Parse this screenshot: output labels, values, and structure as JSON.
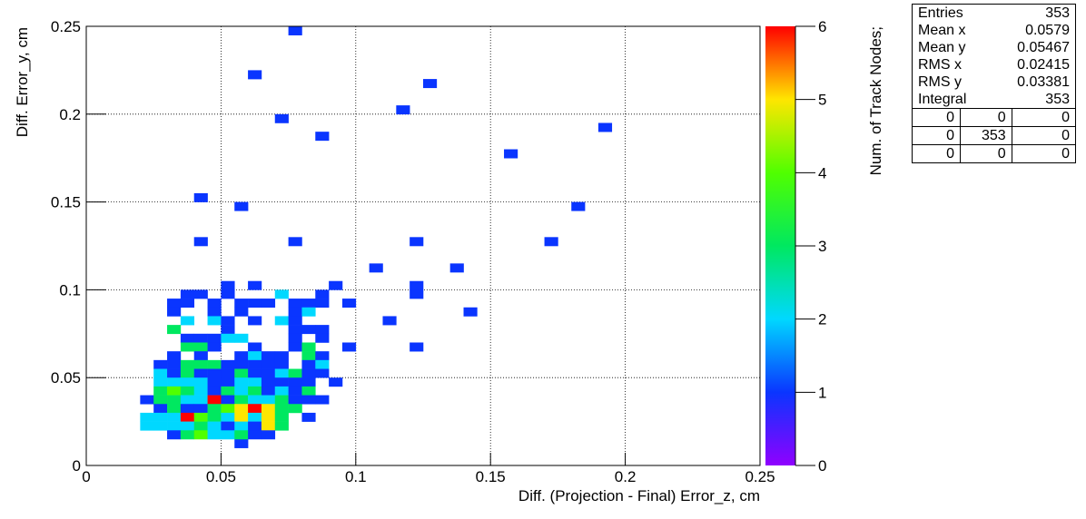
{
  "chart_data": {
    "type": "heatmap2d",
    "xlabel": "Diff. (Projection - Final) Error_z, cm",
    "ylabel": "Diff. Error_y, cm",
    "zlabel": "Num. of Track Nodes;",
    "xlim": [
      0,
      0.25
    ],
    "xticks": [
      0,
      0.05,
      0.1,
      0.15,
      0.2,
      0.25
    ],
    "ylim": [
      0,
      0.25
    ],
    "yticks": [
      0,
      0.05,
      0.1,
      0.15,
      0.2,
      0.25
    ],
    "zlim": [
      0,
      6
    ],
    "zticks": [
      0,
      1,
      2,
      3,
      4,
      5,
      6
    ],
    "grid": true,
    "colorscale": [
      "#9000ff",
      "#0a35ff",
      "#00d8ff",
      "#00e860",
      "#50ff00",
      "#ffe600",
      "#ff0000"
    ],
    "cells": [
      [
        0.075,
        0.245,
        1
      ],
      [
        0.06,
        0.22,
        1
      ],
      [
        0.125,
        0.215,
        1
      ],
      [
        0.07,
        0.195,
        1
      ],
      [
        0.115,
        0.2,
        1
      ],
      [
        0.19,
        0.19,
        1
      ],
      [
        0.085,
        0.185,
        1
      ],
      [
        0.155,
        0.175,
        1
      ],
      [
        0.04,
        0.15,
        1
      ],
      [
        0.055,
        0.145,
        1
      ],
      [
        0.18,
        0.145,
        1
      ],
      [
        0.04,
        0.125,
        1
      ],
      [
        0.075,
        0.125,
        1
      ],
      [
        0.12,
        0.125,
        1
      ],
      [
        0.17,
        0.125,
        1
      ],
      [
        0.105,
        0.11,
        1
      ],
      [
        0.135,
        0.11,
        1
      ],
      [
        0.05,
        0.1,
        1
      ],
      [
        0.06,
        0.1,
        1
      ],
      [
        0.09,
        0.1,
        1
      ],
      [
        0.12,
        0.1,
        1
      ],
      [
        0.12,
        0.095,
        1
      ],
      [
        0.14,
        0.085,
        1
      ],
      [
        0.11,
        0.08,
        1
      ],
      [
        0.12,
        0.065,
        1
      ],
      [
        0.08,
        0.025,
        1
      ],
      [
        0.055,
        0.01,
        1
      ],
      [
        0.035,
        0.095,
        1
      ],
      [
        0.04,
        0.095,
        1
      ],
      [
        0.05,
        0.095,
        1
      ],
      [
        0.07,
        0.095,
        2
      ],
      [
        0.085,
        0.095,
        1
      ],
      [
        0.03,
        0.09,
        1
      ],
      [
        0.035,
        0.09,
        1
      ],
      [
        0.045,
        0.09,
        1
      ],
      [
        0.055,
        0.09,
        1
      ],
      [
        0.06,
        0.09,
        1
      ],
      [
        0.065,
        0.09,
        1
      ],
      [
        0.075,
        0.09,
        1
      ],
      [
        0.08,
        0.09,
        1
      ],
      [
        0.085,
        0.09,
        1
      ],
      [
        0.095,
        0.09,
        1
      ],
      [
        0.03,
        0.085,
        1
      ],
      [
        0.045,
        0.085,
        1
      ],
      [
        0.055,
        0.085,
        1
      ],
      [
        0.075,
        0.085,
        1
      ],
      [
        0.08,
        0.085,
        2
      ],
      [
        0.035,
        0.08,
        2
      ],
      [
        0.045,
        0.08,
        2
      ],
      [
        0.05,
        0.08,
        1
      ],
      [
        0.06,
        0.08,
        1
      ],
      [
        0.07,
        0.08,
        2
      ],
      [
        0.075,
        0.08,
        1
      ],
      [
        0.03,
        0.075,
        3
      ],
      [
        0.05,
        0.075,
        1
      ],
      [
        0.075,
        0.075,
        1
      ],
      [
        0.08,
        0.075,
        1
      ],
      [
        0.085,
        0.075,
        1
      ],
      [
        0.035,
        0.07,
        1
      ],
      [
        0.04,
        0.07,
        1
      ],
      [
        0.045,
        0.07,
        1
      ],
      [
        0.05,
        0.07,
        2
      ],
      [
        0.055,
        0.07,
        2
      ],
      [
        0.075,
        0.07,
        1
      ],
      [
        0.085,
        0.07,
        1
      ],
      [
        0.035,
        0.065,
        3
      ],
      [
        0.04,
        0.065,
        3
      ],
      [
        0.045,
        0.065,
        1
      ],
      [
        0.06,
        0.065,
        1
      ],
      [
        0.075,
        0.065,
        1
      ],
      [
        0.08,
        0.065,
        3
      ],
      [
        0.095,
        0.065,
        1
      ],
      [
        0.03,
        0.06,
        1
      ],
      [
        0.04,
        0.06,
        1
      ],
      [
        0.055,
        0.06,
        1
      ],
      [
        0.06,
        0.06,
        2
      ],
      [
        0.065,
        0.06,
        1
      ],
      [
        0.07,
        0.06,
        1
      ],
      [
        0.08,
        0.06,
        3
      ],
      [
        0.085,
        0.06,
        1
      ],
      [
        0.025,
        0.055,
        1
      ],
      [
        0.03,
        0.055,
        1
      ],
      [
        0.035,
        0.055,
        3
      ],
      [
        0.04,
        0.055,
        3
      ],
      [
        0.045,
        0.055,
        3
      ],
      [
        0.05,
        0.055,
        1
      ],
      [
        0.055,
        0.055,
        1
      ],
      [
        0.06,
        0.055,
        1
      ],
      [
        0.065,
        0.055,
        1
      ],
      [
        0.07,
        0.055,
        1
      ],
      [
        0.08,
        0.055,
        1
      ],
      [
        0.085,
        0.055,
        2
      ],
      [
        0.025,
        0.05,
        2
      ],
      [
        0.03,
        0.05,
        1
      ],
      [
        0.035,
        0.05,
        3
      ],
      [
        0.04,
        0.05,
        1
      ],
      [
        0.045,
        0.05,
        1
      ],
      [
        0.05,
        0.05,
        1
      ],
      [
        0.055,
        0.05,
        3
      ],
      [
        0.06,
        0.05,
        1
      ],
      [
        0.065,
        0.05,
        1
      ],
      [
        0.07,
        0.05,
        2
      ],
      [
        0.075,
        0.05,
        3
      ],
      [
        0.08,
        0.05,
        1
      ],
      [
        0.085,
        0.05,
        1
      ],
      [
        0.025,
        0.045,
        2
      ],
      [
        0.03,
        0.045,
        2
      ],
      [
        0.035,
        0.045,
        2
      ],
      [
        0.04,
        0.045,
        2
      ],
      [
        0.045,
        0.045,
        1
      ],
      [
        0.05,
        0.045,
        1
      ],
      [
        0.055,
        0.045,
        2
      ],
      [
        0.06,
        0.045,
        2
      ],
      [
        0.065,
        0.045,
        1
      ],
      [
        0.07,
        0.045,
        1
      ],
      [
        0.075,
        0.045,
        1
      ],
      [
        0.08,
        0.045,
        1
      ],
      [
        0.09,
        0.045,
        1
      ],
      [
        0.025,
        0.04,
        3
      ],
      [
        0.03,
        0.04,
        4
      ],
      [
        0.035,
        0.04,
        3
      ],
      [
        0.04,
        0.04,
        2
      ],
      [
        0.045,
        0.04,
        1
      ],
      [
        0.05,
        0.04,
        3
      ],
      [
        0.055,
        0.04,
        2
      ],
      [
        0.06,
        0.04,
        3
      ],
      [
        0.065,
        0.04,
        1
      ],
      [
        0.07,
        0.04,
        2
      ],
      [
        0.075,
        0.04,
        1
      ],
      [
        0.08,
        0.04,
        3
      ],
      [
        0.02,
        0.035,
        1
      ],
      [
        0.025,
        0.035,
        3
      ],
      [
        0.03,
        0.035,
        3
      ],
      [
        0.035,
        0.035,
        2
      ],
      [
        0.04,
        0.035,
        2
      ],
      [
        0.045,
        0.035,
        6
      ],
      [
        0.05,
        0.035,
        1
      ],
      [
        0.055,
        0.035,
        3
      ],
      [
        0.06,
        0.035,
        2
      ],
      [
        0.065,
        0.035,
        2
      ],
      [
        0.07,
        0.035,
        3
      ],
      [
        0.075,
        0.035,
        1
      ],
      [
        0.08,
        0.035,
        1
      ],
      [
        0.085,
        0.035,
        1
      ],
      [
        0.025,
        0.03,
        1
      ],
      [
        0.03,
        0.03,
        3
      ],
      [
        0.035,
        0.03,
        1
      ],
      [
        0.04,
        0.03,
        1
      ],
      [
        0.045,
        0.03,
        3
      ],
      [
        0.05,
        0.03,
        4
      ],
      [
        0.055,
        0.03,
        5
      ],
      [
        0.06,
        0.03,
        6
      ],
      [
        0.065,
        0.03,
        5
      ],
      [
        0.07,
        0.03,
        3
      ],
      [
        0.075,
        0.03,
        3
      ],
      [
        0.02,
        0.025,
        2
      ],
      [
        0.025,
        0.025,
        2
      ],
      [
        0.03,
        0.025,
        2
      ],
      [
        0.035,
        0.025,
        6
      ],
      [
        0.04,
        0.025,
        4
      ],
      [
        0.045,
        0.025,
        3
      ],
      [
        0.05,
        0.025,
        2
      ],
      [
        0.055,
        0.025,
        5
      ],
      [
        0.06,
        0.025,
        2
      ],
      [
        0.065,
        0.025,
        5
      ],
      [
        0.07,
        0.025,
        3
      ],
      [
        0.02,
        0.02,
        2
      ],
      [
        0.025,
        0.02,
        2
      ],
      [
        0.03,
        0.02,
        2
      ],
      [
        0.035,
        0.02,
        2
      ],
      [
        0.04,
        0.02,
        3
      ],
      [
        0.045,
        0.02,
        2
      ],
      [
        0.05,
        0.02,
        1
      ],
      [
        0.055,
        0.02,
        2
      ],
      [
        0.06,
        0.02,
        1
      ],
      [
        0.065,
        0.02,
        5
      ],
      [
        0.07,
        0.02,
        3
      ],
      [
        0.03,
        0.015,
        1
      ],
      [
        0.035,
        0.015,
        3
      ],
      [
        0.04,
        0.015,
        4
      ],
      [
        0.045,
        0.015,
        2
      ],
      [
        0.05,
        0.015,
        2
      ],
      [
        0.055,
        0.015,
        3
      ],
      [
        0.06,
        0.015,
        1
      ],
      [
        0.065,
        0.015,
        1
      ]
    ]
  },
  "stats": {
    "rows": [
      [
        "Entries",
        "353"
      ],
      [
        "Mean x",
        "0.0579"
      ],
      [
        "Mean y",
        "0.05467"
      ],
      [
        "RMS x",
        "0.02415"
      ],
      [
        "RMS y",
        "0.03381"
      ],
      [
        "Integral",
        "353"
      ]
    ],
    "grid": [
      [
        "0",
        "0",
        "0"
      ],
      [
        "0",
        "353",
        "0"
      ],
      [
        "0",
        "0",
        "0"
      ]
    ]
  }
}
